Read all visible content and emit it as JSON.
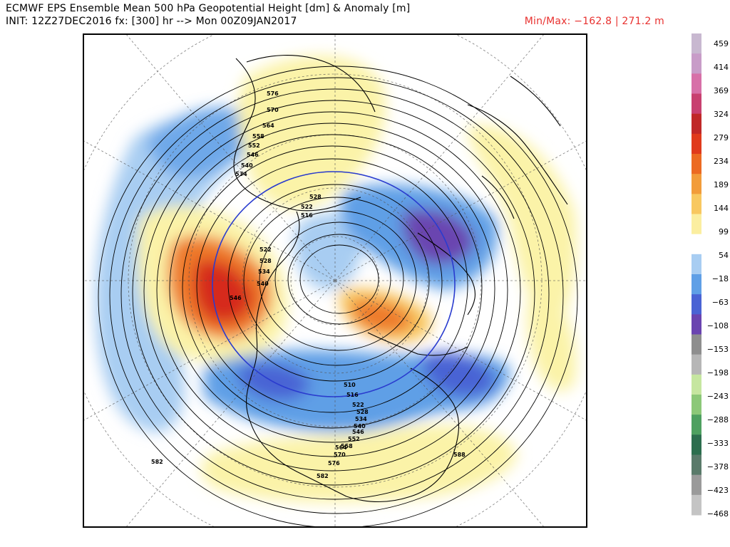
{
  "header": {
    "title": "ECMWF EPS Ensemble Mean 500 hPa Geopotential Height [dm] & Anomaly [m]",
    "init": "INIT: 12Z27DEC2016 fx: [300] hr --> Mon 00Z09JAN2017",
    "minmax": "Min/Max: −162.8 | 271.2 m"
  },
  "colorbar": {
    "ticks": [
      "459",
      "414",
      "369",
      "324",
      "279",
      "234",
      "189",
      "144",
      "99",
      "54",
      "−18",
      "−63",
      "−108",
      "−153",
      "−198",
      "−243",
      "−288",
      "−333",
      "−378",
      "−423",
      "−468"
    ],
    "colors": [
      "#c8b8d0",
      "#c89cc8",
      "#d770a8",
      "#c84070",
      "#c02828",
      "#e03a1c",
      "#ec6a22",
      "#f29c3a",
      "#f8c860",
      "#fbeea0",
      "#ffffff",
      "#a8cdf2",
      "#5f9fe6",
      "#4a63d4",
      "#6a44b0",
      "#8e8e8e",
      "#b6b6b6",
      "#c6e6a0",
      "#8cc878",
      "#4ea060",
      "#2c6e4e",
      "#5a7a6a",
      "#9a9a9a",
      "#c4c4c4"
    ]
  },
  "map": {
    "anomaly_colors": {
      "weak_positive": "#fbf3a8",
      "mod_positive": "#f8c860",
      "strong_positive": "#ee7a2a",
      "peak_positive": "#d62a1c",
      "weak_negative": "#a8cdf2",
      "mod_negative": "#5f9fe6",
      "strong_negative": "#4a63d4",
      "peak_negative": "#6a44b0"
    },
    "contour_labels": [
      {
        "text": "576"
      },
      {
        "text": "570"
      },
      {
        "text": "564"
      },
      {
        "text": "558"
      },
      {
        "text": "552"
      },
      {
        "text": "546"
      },
      {
        "text": "540"
      },
      {
        "text": "534"
      },
      {
        "text": "528"
      },
      {
        "text": "522"
      },
      {
        "text": "516"
      },
      {
        "text": "522"
      },
      {
        "text": "528"
      },
      {
        "text": "534"
      },
      {
        "text": "540"
      },
      {
        "text": "546"
      },
      {
        "text": "510"
      },
      {
        "text": "516"
      },
      {
        "text": "522"
      },
      {
        "text": "528"
      },
      {
        "text": "534"
      },
      {
        "text": "540"
      },
      {
        "text": "546"
      },
      {
        "text": "552"
      },
      {
        "text": "558"
      },
      {
        "text": "564"
      },
      {
        "text": "570"
      },
      {
        "text": "576"
      },
      {
        "text": "582"
      },
      {
        "text": "582"
      },
      {
        "text": "588"
      }
    ]
  }
}
